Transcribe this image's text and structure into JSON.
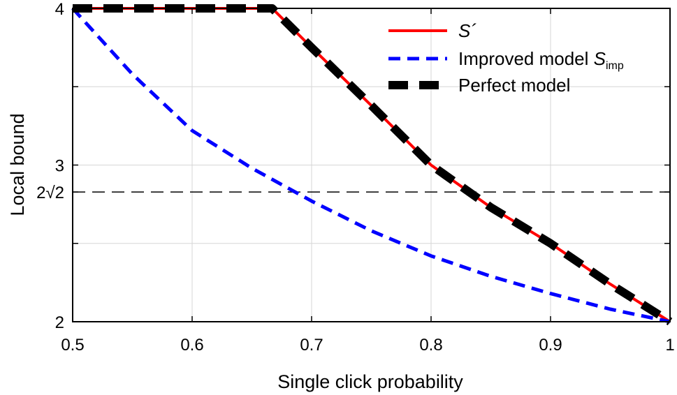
{
  "chart_data": {
    "type": "line",
    "xlabel": "Single click probability",
    "ylabel": "Local bound",
    "xlim": [
      0.5,
      1
    ],
    "ylim": [
      2,
      4
    ],
    "x_ticks": [
      0.5,
      0.6,
      0.7,
      0.8,
      0.9,
      1
    ],
    "x_tick_labels": [
      "0.5",
      "0.6",
      "0.7",
      "0.8",
      "0.9",
      "1"
    ],
    "y_ticks": [
      {
        "value": 2,
        "label": "2"
      },
      {
        "value": 2.828,
        "label": "2√2"
      },
      {
        "value": 3,
        "label": "3"
      },
      {
        "value": 4,
        "label": "4"
      }
    ],
    "grid": true,
    "grid_y": [
      2.5,
      3,
      3.5
    ],
    "reference_line": {
      "y": 2.828,
      "style": "dashed",
      "color": "#000000"
    },
    "legend_position": "top-right",
    "series": [
      {
        "name": "S´",
        "color": "#ff0000",
        "style": "solid",
        "x": [
          0.5,
          0.667,
          0.7,
          0.75,
          0.8,
          0.85,
          0.9,
          0.95,
          1.0
        ],
        "y": [
          4,
          4,
          3.75,
          3.38,
          3.0,
          2.73,
          2.5,
          2.24,
          2.0
        ]
      },
      {
        "name": "Improved model ",
        "name_sub": "imp",
        "name_symbol": "S",
        "color": "#0000ff",
        "style": "dashed",
        "x": [
          0.5,
          0.55,
          0.6,
          0.65,
          0.7,
          0.75,
          0.8,
          0.85,
          0.9,
          0.95,
          1.0
        ],
        "y": [
          4,
          3.58,
          3.22,
          2.98,
          2.77,
          2.58,
          2.42,
          2.29,
          2.18,
          2.08,
          2.0
        ]
      },
      {
        "name": "Perfect model",
        "color": "#000000",
        "style": "thick-dashed",
        "x": [
          0.5,
          0.667,
          0.7,
          0.75,
          0.8,
          0.85,
          0.9,
          0.95,
          1.0
        ],
        "y": [
          4,
          4,
          3.75,
          3.38,
          3.0,
          2.73,
          2.5,
          2.24,
          2.0
        ]
      }
    ]
  }
}
